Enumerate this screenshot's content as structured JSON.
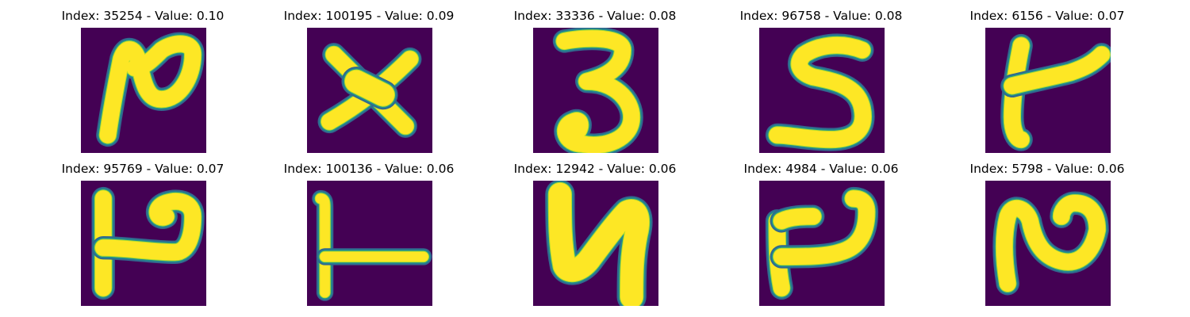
{
  "colors": {
    "background": "#440154",
    "stroke_core": "#fde725",
    "stroke_mid": "#b5de2b",
    "stroke_edge": "#21918c",
    "stroke_halo": "#31688e"
  },
  "panels": [
    {
      "title": "Index: 35254 - Value: 0.10",
      "glyph": "handwritten-digit"
    },
    {
      "title": "Index: 100195 - Value: 0.09",
      "glyph": "handwritten-digit"
    },
    {
      "title": "Index: 33336 - Value: 0.08",
      "glyph": "handwritten-digit"
    },
    {
      "title": "Index: 96758 - Value: 0.08",
      "glyph": "handwritten-digit"
    },
    {
      "title": "Index: 6156 - Value: 0.07",
      "glyph": "handwritten-digit"
    },
    {
      "title": "Index: 95769 - Value: 0.07",
      "glyph": "handwritten-digit"
    },
    {
      "title": "Index: 100136 - Value: 0.06",
      "glyph": "handwritten-digit"
    },
    {
      "title": "Index: 12942 - Value: 0.06",
      "glyph": "handwritten-digit"
    },
    {
      "title": "Index: 4984 - Value: 0.06",
      "glyph": "handwritten-digit"
    },
    {
      "title": "Index: 5798 - Value: 0.06",
      "glyph": "handwritten-digit"
    }
  ]
}
